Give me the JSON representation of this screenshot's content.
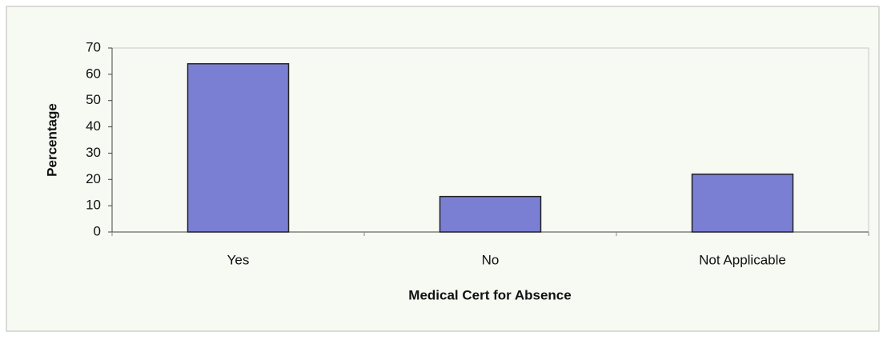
{
  "chart_data": {
    "type": "bar",
    "categories": [
      "Yes",
      "No",
      "Not Applicable"
    ],
    "values": [
      64,
      13.5,
      22
    ],
    "color": "#7b7fd3",
    "xlabel": "Medical Cert for Absence",
    "ylabel": "Percentage",
    "ylim": [
      0,
      70
    ],
    "yticks": [
      0,
      10,
      20,
      30,
      40,
      50,
      60,
      70
    ],
    "grid": false
  }
}
